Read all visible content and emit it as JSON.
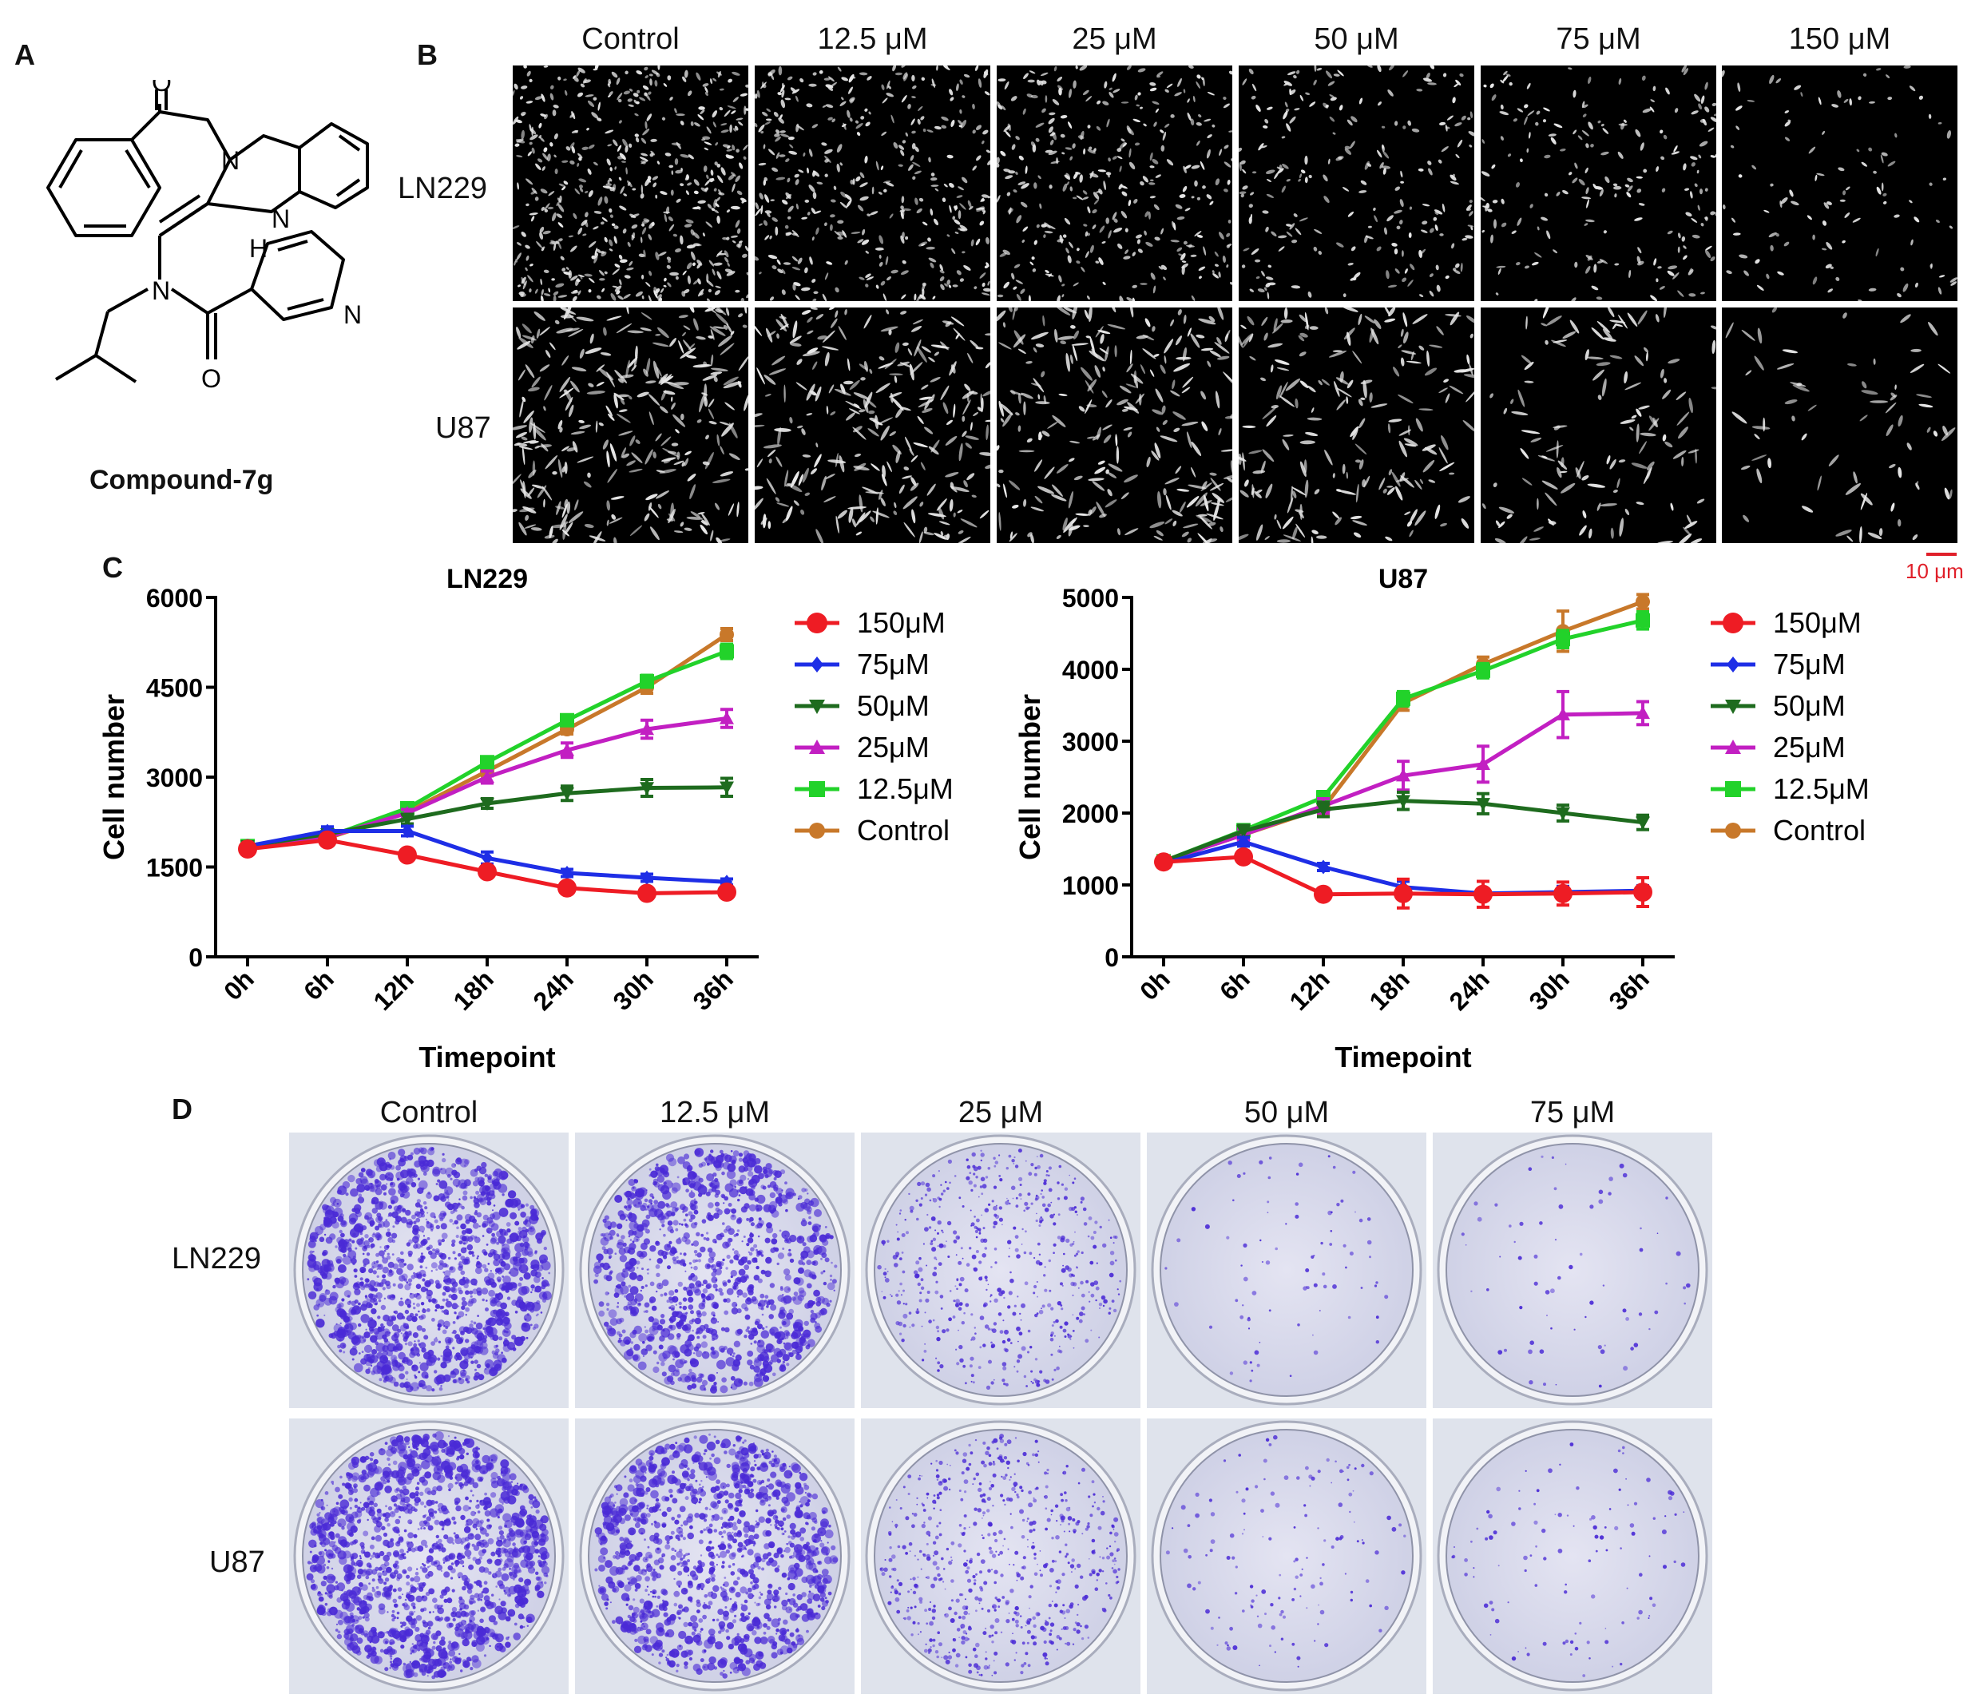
{
  "panelA": {
    "letter": "A",
    "compound_name": "Compound-7g",
    "atoms": {
      "O1": "O",
      "N1": "N",
      "N2": "N",
      "H1": "H",
      "N3": "N",
      "N4": "N",
      "O2": "O"
    }
  },
  "panelB": {
    "letter": "B",
    "columns": [
      "Control",
      "12.5 μM",
      "25 μM",
      "50 μM",
      "75 μM",
      "150 μM"
    ],
    "rows": [
      "LN229",
      "U87"
    ],
    "scale_bar_label": "10 μm",
    "scale_bar_color": "#e0202a"
  },
  "panelC": {
    "letter": "C",
    "legend": [
      "150μM",
      "75μM",
      "50μM",
      "25μM",
      "12.5μM",
      "Control"
    ]
  },
  "colors": {
    "150μM": "#ee1c24",
    "75μM": "#1e2ee6",
    "50μM": "#1e6b1e",
    "25μM": "#c21fc2",
    "12.5μM": "#22d22a",
    "Control": "#c8782a"
  },
  "chart_data": [
    {
      "type": "line",
      "title": "LN229",
      "xlabel": "Timepoint",
      "ylabel": "Cell number",
      "categories": [
        "0h",
        "6h",
        "12h",
        "18h",
        "24h",
        "30h",
        "36h"
      ],
      "ylim": [
        0,
        6000
      ],
      "yticks": [
        0,
        1500,
        3000,
        4500,
        6000
      ],
      "legend_position": "right",
      "series": [
        {
          "name": "150μM",
          "marker": "circle",
          "values": [
            1800,
            1950,
            1700,
            1420,
            1150,
            1060,
            1080
          ],
          "err": [
            60,
            80,
            60,
            60,
            50,
            40,
            40
          ]
        },
        {
          "name": "75μM",
          "marker": "diamond",
          "values": [
            1850,
            2100,
            2100,
            1650,
            1400,
            1320,
            1250
          ],
          "err": [
            50,
            70,
            80,
            100,
            60,
            60,
            50
          ]
        },
        {
          "name": "50μM",
          "marker": "triangle-down",
          "values": [
            1850,
            2050,
            2300,
            2560,
            2730,
            2820,
            2830
          ],
          "err": [
            60,
            60,
            80,
            80,
            120,
            140,
            150
          ]
        },
        {
          "name": "25μM",
          "marker": "triangle-up",
          "values": [
            1850,
            2000,
            2400,
            3000,
            3450,
            3800,
            3980
          ],
          "err": [
            60,
            60,
            60,
            100,
            120,
            150,
            150
          ]
        },
        {
          "name": "12.5μM",
          "marker": "square",
          "values": [
            1850,
            2000,
            2480,
            3250,
            3950,
            4600,
            5100
          ],
          "err": [
            60,
            60,
            60,
            80,
            80,
            100,
            120
          ]
        },
        {
          "name": "Control",
          "marker": "circle",
          "values": [
            1850,
            1980,
            2420,
            3100,
            3800,
            4500,
            5380
          ],
          "err": [
            60,
            60,
            60,
            80,
            80,
            100,
            100
          ]
        }
      ]
    },
    {
      "type": "line",
      "title": "U87",
      "xlabel": "Timepoint",
      "ylabel": "Cell number",
      "categories": [
        "0h",
        "6h",
        "12h",
        "18h",
        "24h",
        "30h",
        "36h"
      ],
      "ylim": [
        0,
        5000
      ],
      "yticks": [
        0,
        1000,
        2000,
        3000,
        4000,
        5000
      ],
      "legend_position": "right",
      "series": [
        {
          "name": "150μM",
          "marker": "circle",
          "values": [
            1320,
            1390,
            870,
            880,
            870,
            880,
            900
          ],
          "err": [
            60,
            80,
            60,
            200,
            180,
            160,
            200
          ]
        },
        {
          "name": "75μM",
          "marker": "diamond",
          "values": [
            1300,
            1600,
            1250,
            970,
            880,
            900,
            920
          ],
          "err": [
            50,
            60,
            50,
            80,
            60,
            80,
            70
          ]
        },
        {
          "name": "50μM",
          "marker": "triangle-down",
          "values": [
            1330,
            1750,
            2050,
            2170,
            2130,
            2000,
            1870
          ],
          "err": [
            60,
            80,
            100,
            120,
            140,
            110,
            100
          ]
        },
        {
          "name": "25μM",
          "marker": "triangle-up",
          "values": [
            1330,
            1700,
            2100,
            2520,
            2680,
            3370,
            3390
          ],
          "err": [
            60,
            80,
            100,
            200,
            250,
            320,
            160
          ]
        },
        {
          "name": "12.5μM",
          "marker": "square",
          "values": [
            1330,
            1760,
            2220,
            3590,
            3980,
            4420,
            4680
          ],
          "err": [
            60,
            80,
            80,
            100,
            100,
            120,
            120
          ]
        },
        {
          "name": "Control",
          "marker": "circle",
          "values": [
            1330,
            1700,
            2070,
            3530,
            4070,
            4530,
            4940
          ],
          "err": [
            60,
            80,
            80,
            100,
            100,
            280,
            100
          ]
        }
      ]
    }
  ],
  "panelD": {
    "letter": "D",
    "columns": [
      "Control",
      "12.5 μM",
      "25 μM",
      "50 μM",
      "75 μM"
    ],
    "rows": [
      "LN229",
      "U87"
    ],
    "colony_density": {
      "LN229": [
        1.0,
        0.8,
        0.4,
        0.06,
        0.05
      ],
      "U87": [
        1.0,
        0.85,
        0.45,
        0.1,
        0.08
      ]
    },
    "stain_color": "#4a2ad6"
  }
}
